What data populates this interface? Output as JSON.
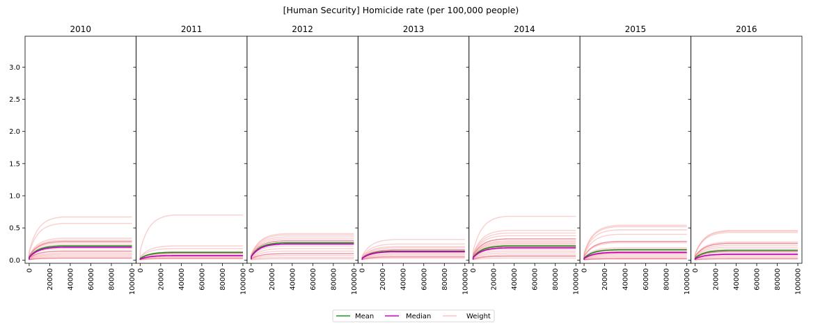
{
  "chart_data": {
    "type": "line",
    "title": "[Human Security] Homicide rate (per 100,000 people)",
    "panels": [
      {
        "title": "2010",
        "mean": 0.22,
        "median": 0.2,
        "weights": [
          0.67,
          0.57,
          0.34,
          0.31,
          0.29,
          0.27,
          0.24,
          0.22,
          0.18,
          0.14,
          0.11,
          0.09,
          0.07,
          0.05,
          0.03
        ]
      },
      {
        "title": "2011",
        "mean": 0.12,
        "median": 0.07,
        "weights": [
          0.7,
          0.22,
          0.18,
          0.13,
          0.11,
          0.1,
          0.08,
          0.06,
          0.05,
          0.03,
          0.02
        ]
      },
      {
        "title": "2012",
        "mean": 0.27,
        "median": 0.25,
        "weights": [
          0.41,
          0.39,
          0.36,
          0.33,
          0.3,
          0.26,
          0.22,
          0.18,
          0.14,
          0.1,
          0.07,
          0.04,
          0.02
        ]
      },
      {
        "title": "2013",
        "mean": 0.14,
        "median": 0.13,
        "weights": [
          0.32,
          0.25,
          0.21,
          0.19,
          0.16,
          0.13,
          0.11,
          0.09,
          0.07,
          0.05,
          0.03
        ]
      },
      {
        "title": "2014",
        "mean": 0.22,
        "median": 0.19,
        "weights": [
          0.68,
          0.46,
          0.42,
          0.38,
          0.33,
          0.3,
          0.28,
          0.26,
          0.24,
          0.21,
          0.17,
          0.14,
          0.11,
          0.08,
          0.06,
          0.03
        ]
      },
      {
        "title": "2015",
        "mean": 0.16,
        "median": 0.12,
        "weights": [
          0.54,
          0.52,
          0.47,
          0.4,
          0.29,
          0.27,
          0.19,
          0.17,
          0.14,
          0.11,
          0.09,
          0.07,
          0.05,
          0.03,
          0.02
        ]
      },
      {
        "title": "2016",
        "mean": 0.15,
        "median": 0.09,
        "weights": [
          0.46,
          0.45,
          0.43,
          0.28,
          0.26,
          0.23,
          0.2,
          0.17,
          0.15,
          0.13,
          0.1,
          0.08,
          0.06,
          0.04,
          0.02
        ]
      }
    ],
    "x_ticks": [
      "0",
      "20000",
      "40000",
      "60000",
      "80000",
      "100000"
    ],
    "x_tick_values": [
      0,
      20000,
      40000,
      60000,
      80000,
      100000
    ],
    "xlim": [
      -4000,
      104000
    ],
    "y_ticks": [
      "0.0",
      "0.5",
      "1.0",
      "1.5",
      "2.0",
      "2.5",
      "3.0"
    ],
    "y_tick_values": [
      0,
      0.5,
      1.0,
      1.5,
      2.0,
      2.5,
      3.0
    ],
    "ylim": [
      -0.05,
      3.48
    ],
    "legend": {
      "position": "bottom-center",
      "entries": [
        {
          "label": "Mean",
          "color": "#228B22"
        },
        {
          "label": "Median",
          "color": "#BF00BF"
        },
        {
          "label": "Weight",
          "color": "#FFBFBF"
        }
      ]
    },
    "colors": {
      "weight": "#F4A0A0",
      "weight_dark": "#E0304A",
      "mean": "#228B22",
      "median": "#BF00BF"
    },
    "grid": false
  }
}
